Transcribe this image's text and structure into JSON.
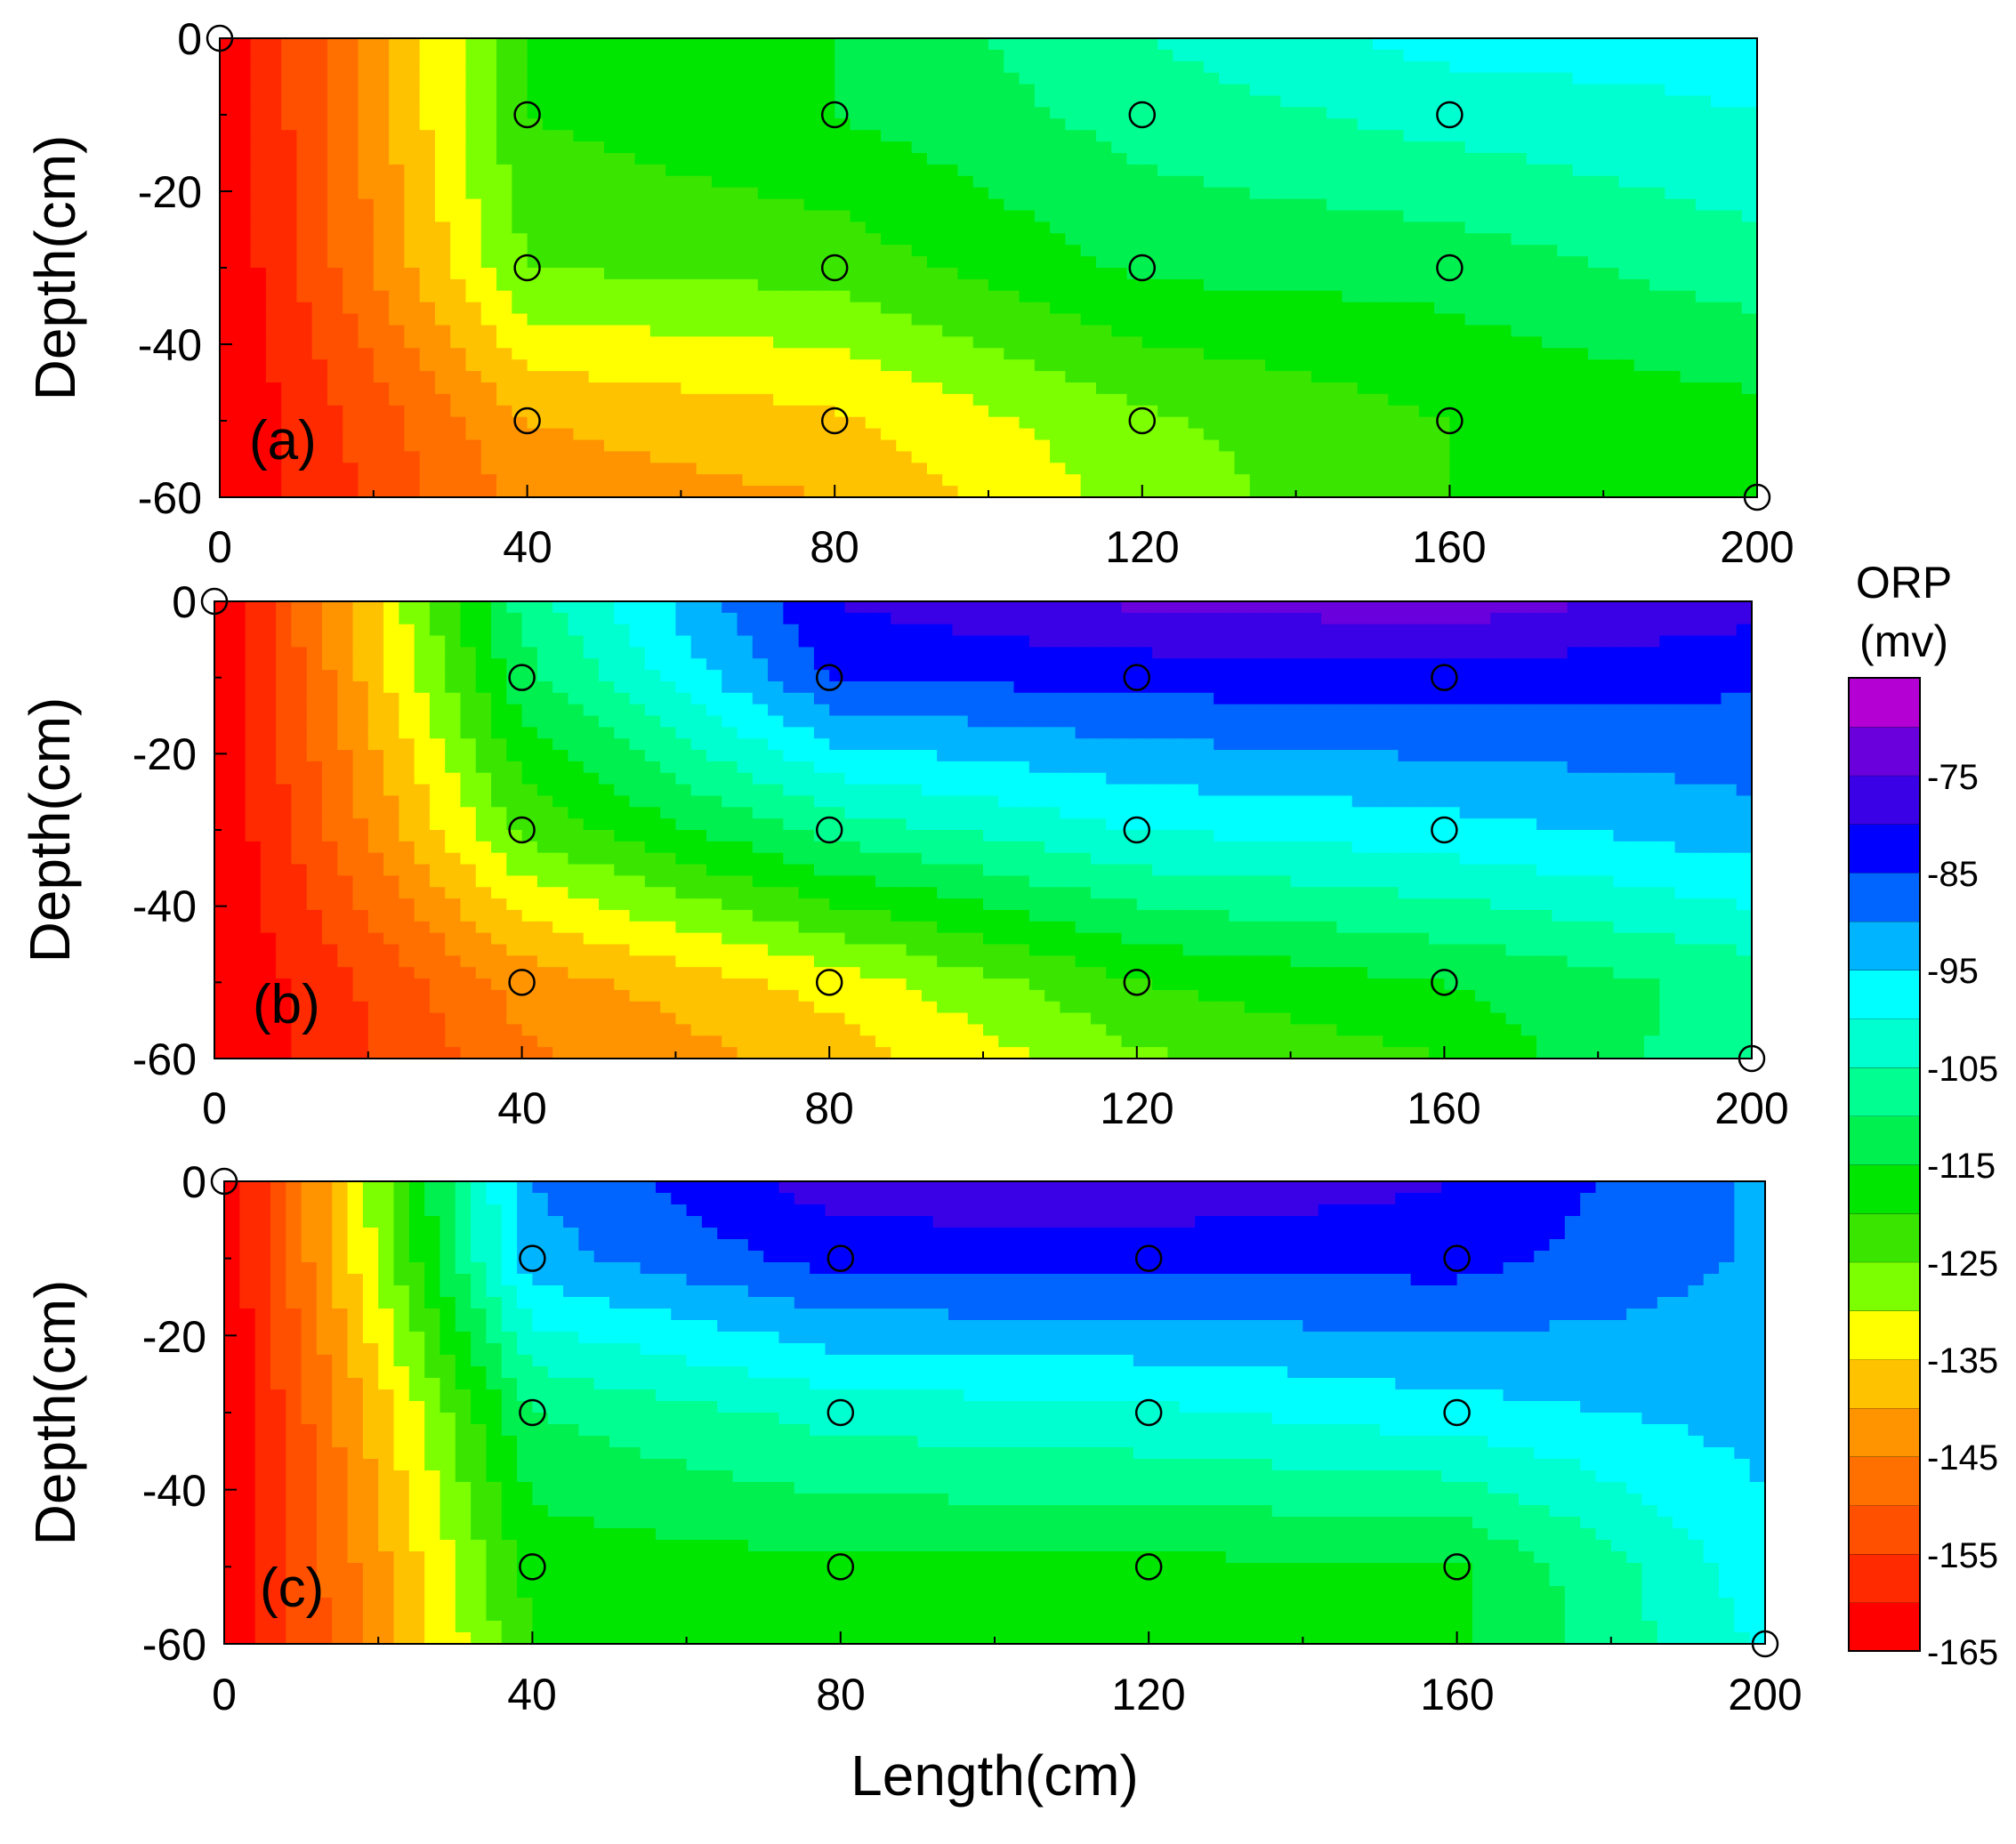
{
  "figure": {
    "colorbar": {
      "title_line1": "ORP",
      "title_line2": "(mv)",
      "levels": [
        -165,
        -160,
        -155,
        -150,
        -145,
        -140,
        -135,
        -130,
        -125,
        -120,
        -115,
        -110,
        -105,
        -100,
        -95,
        -90,
        -85,
        -80,
        -75,
        -70,
        -65
      ],
      "colors": [
        "#ff0000",
        "#ff2a00",
        "#ff5000",
        "#ff7000",
        "#ff9400",
        "#ffc200",
        "#ffff00",
        "#7cff00",
        "#3ae600",
        "#00e600",
        "#00f050",
        "#00ff90",
        "#00ffd0",
        "#00ffff",
        "#00b4ff",
        "#0064ff",
        "#0000ff",
        "#3a00e6",
        "#6a00dc",
        "#b400d2"
      ],
      "tick_labels": [
        "-75",
        "-85",
        "-95",
        "-105",
        "-115",
        "-125",
        "-135",
        "-145",
        "-155",
        "-165"
      ]
    }
  },
  "chart_data": [
    {
      "type": "heatmap",
      "panel_label": "(a)",
      "ylabel": "Depth(cm)",
      "xlabel": "",
      "xlim": [
        0,
        200
      ],
      "ylim": [
        -60,
        0
      ],
      "x_ticks": [
        "0",
        "40",
        "80",
        "120",
        "160",
        "200"
      ],
      "y_ticks": [
        "0",
        "-20",
        "-40",
        "-60"
      ],
      "grid_x": [
        0,
        40,
        80,
        120,
        160,
        200
      ],
      "grid_depths": [
        0,
        -10,
        -30,
        -50,
        -60
      ],
      "orp_values_mv": [
        [
          -165,
          -120,
          -115,
          -105,
          -98,
          -98
        ],
        [
          -165,
          -120,
          -115,
          -108,
          -103,
          -100
        ],
        [
          -165,
          -125,
          -123,
          -114,
          -113,
          -107
        ],
        [
          -165,
          -140,
          -136,
          -126,
          -120,
          -117
        ],
        [
          -165,
          -143,
          -140,
          -128,
          -120,
          -118
        ]
      ],
      "measurement_points": [
        [
          40,
          -10
        ],
        [
          80,
          -10
        ],
        [
          120,
          -10
        ],
        [
          160,
          -10
        ],
        [
          40,
          -30
        ],
        [
          80,
          -30
        ],
        [
          120,
          -30
        ],
        [
          160,
          -30
        ],
        [
          40,
          -50
        ],
        [
          80,
          -50
        ],
        [
          120,
          -50
        ],
        [
          160,
          -50
        ],
        [
          0,
          0
        ],
        [
          200,
          -60
        ]
      ]
    },
    {
      "type": "heatmap",
      "panel_label": "(b)",
      "ylabel": "Depth(cm)",
      "xlabel": "",
      "xlim": [
        0,
        200
      ],
      "ylim": [
        -60,
        0
      ],
      "x_ticks": [
        "0",
        "40",
        "80",
        "120",
        "160",
        "200"
      ],
      "y_ticks": [
        "0",
        "-20",
        "-40",
        "-60"
      ],
      "grid_x": [
        0,
        40,
        80,
        120,
        160,
        200
      ],
      "grid_depths": [
        0,
        -10,
        -30,
        -50,
        -60
      ],
      "orp_values_mv": [
        [
          -165,
          -108,
          -80,
          -74,
          -72,
          -78
        ],
        [
          -165,
          -112,
          -85,
          -83,
          -82,
          -84
        ],
        [
          -165,
          -124,
          -108,
          -100,
          -97,
          -92
        ],
        [
          -165,
          -143,
          -133,
          -120,
          -115,
          -108
        ],
        [
          -165,
          -146,
          -138,
          -126,
          -120,
          -105
        ]
      ],
      "measurement_points": [
        [
          40,
          -10
        ],
        [
          80,
          -10
        ],
        [
          120,
          -10
        ],
        [
          160,
          -10
        ],
        [
          40,
          -30
        ],
        [
          80,
          -30
        ],
        [
          120,
          -30
        ],
        [
          160,
          -30
        ],
        [
          40,
          -50
        ],
        [
          80,
          -50
        ],
        [
          120,
          -50
        ],
        [
          160,
          -50
        ],
        [
          0,
          0
        ],
        [
          200,
          -60
        ]
      ]
    },
    {
      "type": "heatmap",
      "panel_label": "(c)",
      "ylabel": "Depth(cm)",
      "xlabel": "Length(cm)",
      "xlim": [
        0,
        200
      ],
      "ylim": [
        -60,
        0
      ],
      "x_ticks": [
        "0",
        "40",
        "80",
        "120",
        "160",
        "200"
      ],
      "y_ticks": [
        "0",
        "-20",
        "-40",
        "-60"
      ],
      "grid_x": [
        0,
        40,
        80,
        120,
        160,
        200
      ],
      "grid_depths": [
        0,
        -10,
        -30,
        -50,
        -60
      ],
      "orp_values_mv": [
        [
          -165,
          -90,
          -77,
          -76,
          -80,
          -91
        ],
        [
          -165,
          -92,
          -83,
          -83,
          -83,
          -91
        ],
        [
          -165,
          -110,
          -103,
          -101,
          -97,
          -93
        ],
        [
          -165,
          -118,
          -116,
          -116,
          -116,
          -97
        ],
        [
          -165,
          -120,
          -118,
          -118,
          -116,
          -99
        ]
      ],
      "measurement_points": [
        [
          40,
          -10
        ],
        [
          80,
          -10
        ],
        [
          120,
          -10
        ],
        [
          160,
          -10
        ],
        [
          40,
          -30
        ],
        [
          80,
          -30
        ],
        [
          120,
          -30
        ],
        [
          160,
          -30
        ],
        [
          40,
          -50
        ],
        [
          80,
          -50
        ],
        [
          120,
          -50
        ],
        [
          160,
          -50
        ],
        [
          0,
          0
        ],
        [
          200,
          -60
        ]
      ]
    }
  ]
}
